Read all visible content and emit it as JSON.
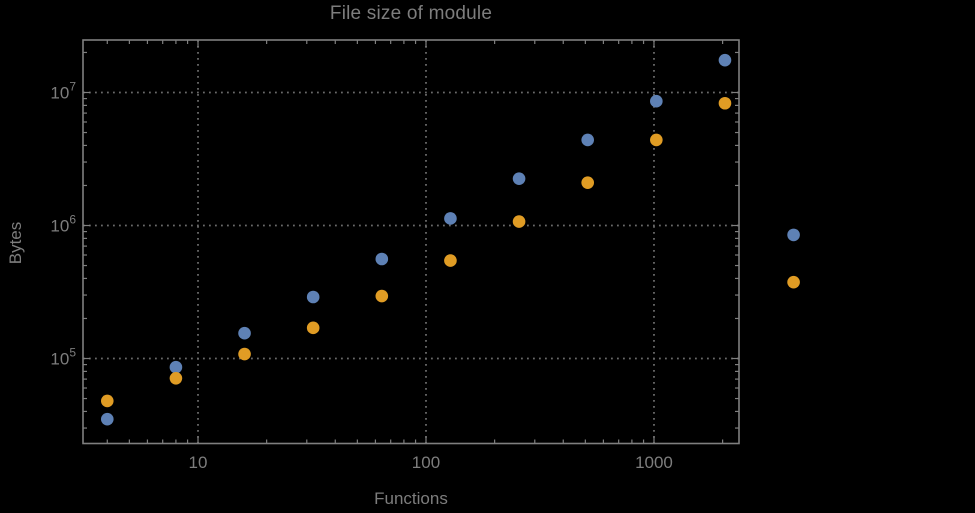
{
  "figure": {
    "background": "#000000"
  },
  "chart_data": {
    "type": "scatter",
    "title": "File size of module",
    "xlabel": "Functions",
    "ylabel": "Bytes",
    "x_scale": "log",
    "y_scale": "log",
    "xlim": [
      3.13,
      2360
    ],
    "ylim": [
      22960,
      24815000
    ],
    "grid": "major-dotted",
    "legend": "none",
    "x": [
      4,
      8,
      16,
      32,
      64,
      128,
      256,
      512,
      1024,
      2048,
      4096
    ],
    "series": [
      {
        "name": "blue-series",
        "color": "#5E81B5",
        "values": [
          35000,
          86000,
          155000,
          290000,
          560000,
          1130000,
          2250000,
          4400000,
          8600000,
          17500000,
          850000
        ]
      },
      {
        "name": "orange-series",
        "color": "#E09C24",
        "values": [
          48000,
          71000,
          108000,
          170000,
          295000,
          545000,
          1070000,
          2100000,
          4400000,
          8300000,
          375000
        ]
      }
    ],
    "x_ticks": [
      {
        "value": 10,
        "label": "10"
      },
      {
        "value": 100,
        "label": "100"
      },
      {
        "value": 1000,
        "label": "1000"
      }
    ],
    "y_ticks": [
      {
        "value": 100000,
        "base": "10",
        "exp": "5"
      },
      {
        "value": 1000000,
        "base": "10",
        "exp": "6"
      },
      {
        "value": 10000000,
        "base": "10",
        "exp": "7"
      }
    ],
    "note": "points at x=4096 are drawn beyond the right frame edge"
  },
  "colors": {
    "frame": "#7f7f7f",
    "grid": "#6a6a6a",
    "text": "#7d7d7d",
    "background": "#000000"
  }
}
